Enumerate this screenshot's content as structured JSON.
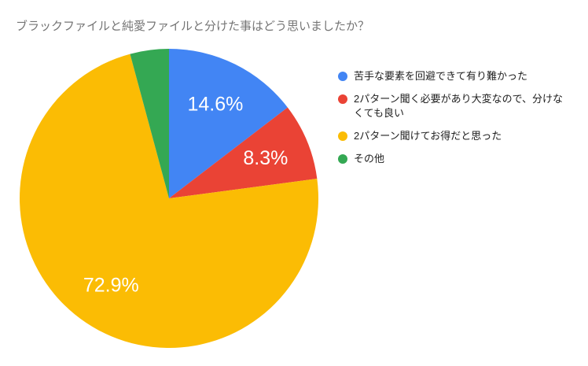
{
  "chart_data": {
    "type": "pie",
    "title": "ブラックファイルと純愛ファイルと分けた事はどう思いましたか？",
    "legend_position": "right",
    "start_angle_deg": 0,
    "direction": "clockwise",
    "label_color": "#ffffff",
    "title_color": "#757575",
    "legend_text_color": "#212121",
    "slices": [
      {
        "label": "苦手な要素を回避できて有り難かった",
        "value": 14.6,
        "pct_label": "14.6%",
        "color": "#4285F4"
      },
      {
        "label": "2パターン聞く必要があり大変なので、分けなくても良い",
        "value": 8.3,
        "pct_label": "8.3%",
        "color": "#EA4335"
      },
      {
        "label": "2パターン聞けてお得だと思った",
        "value": 72.9,
        "pct_label": "72.9%",
        "color": "#FBBC04"
      },
      {
        "label": "その他",
        "value": 4.2,
        "pct_label": "",
        "color": "#34A853"
      }
    ]
  }
}
